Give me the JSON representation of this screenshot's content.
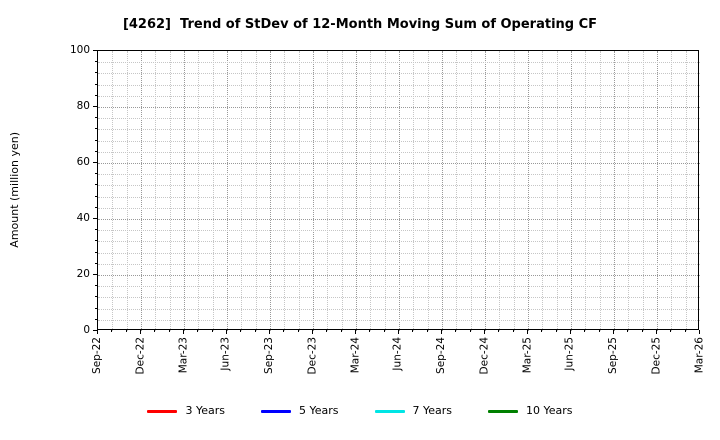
{
  "chart_data": {
    "type": "line",
    "title": "[4262]  Trend of StDev of 12-Month Moving Sum of Operating CF",
    "xlabel": "",
    "ylabel": "Amount (million yen)",
    "ylim": [
      0,
      100
    ],
    "y_ticks": [
      0,
      20,
      40,
      60,
      80,
      100
    ],
    "y_minor_step": 4,
    "x_ticks": [
      "Sep-22",
      "Dec-22",
      "Mar-23",
      "Jun-23",
      "Sep-23",
      "Dec-23",
      "Mar-24",
      "Jun-24",
      "Sep-24",
      "Dec-24",
      "Mar-25",
      "Jun-25",
      "Sep-25",
      "Dec-25",
      "Mar-26"
    ],
    "x_minor": "monthly",
    "grid": {
      "enabled": true,
      "style": "dotted",
      "which": "major-and-minor"
    },
    "legend": {
      "position": "bottom-center",
      "frame": false,
      "entries": [
        {
          "label": "3 Years",
          "color": "#ff0000"
        },
        {
          "label": "5 Years",
          "color": "#0000ff"
        },
        {
          "label": "7 Years",
          "color": "#00e5e5"
        },
        {
          "label": "10 Years",
          "color": "#008000"
        }
      ]
    },
    "series": [
      {
        "name": "3 Years",
        "color": "#ff0000",
        "values": []
      },
      {
        "name": "5 Years",
        "color": "#0000ff",
        "values": []
      },
      {
        "name": "7 Years",
        "color": "#00e5e5",
        "values": []
      },
      {
        "name": "10 Years",
        "color": "#008000",
        "values": []
      }
    ],
    "plot_note": "empty plot area - no data lines are drawn"
  }
}
